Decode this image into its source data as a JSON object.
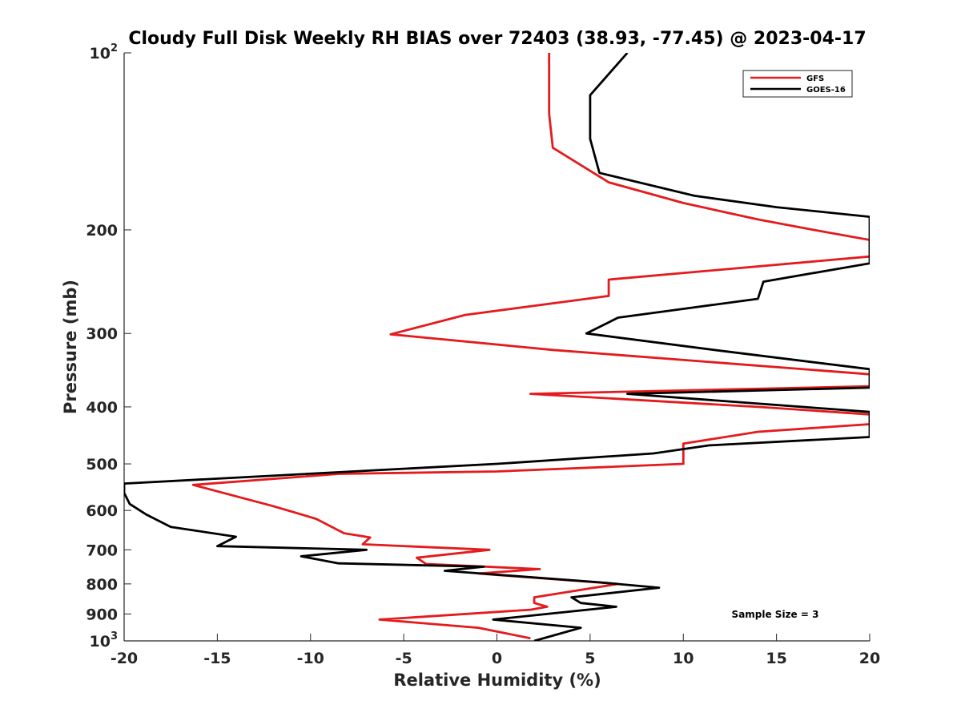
{
  "chart_data": {
    "type": "line",
    "title": "Cloudy Full Disk Weekly RH BIAS over 72403 (38.93, -77.45) @ 2023-04-17",
    "xlabel": "Relative Humidity (%)",
    "ylabel": "Pressure (mb)",
    "xlim": [
      -20,
      20
    ],
    "ylim": [
      100,
      1000
    ],
    "y_scale": "log",
    "y_reversed": true,
    "grid": false,
    "legend_placement": "top-right",
    "xticks": [
      -20,
      -15,
      -10,
      -5,
      0,
      5,
      10,
      15,
      20
    ],
    "xtick_labels": [
      "-20",
      "-15",
      "-10",
      "-5",
      "0",
      "5",
      "10",
      "15",
      "20"
    ],
    "yticks": [
      100,
      200,
      300,
      400,
      500,
      600,
      700,
      800,
      900,
      1000
    ],
    "ytick_labels": [
      {
        "base": "10",
        "exp": "2"
      },
      {
        "base": "200",
        "exp": ""
      },
      {
        "base": "300",
        "exp": ""
      },
      {
        "base": "400",
        "exp": ""
      },
      {
        "base": "500",
        "exp": ""
      },
      {
        "base": "600",
        "exp": ""
      },
      {
        "base": "700",
        "exp": ""
      },
      {
        "base": "800",
        "exp": ""
      },
      {
        "base": "900",
        "exp": ""
      },
      {
        "base": "10",
        "exp": "3"
      }
    ],
    "annotation": "Sample Size = 3",
    "series": [
      {
        "name": "GFS",
        "color": "#e41a1c",
        "x": [
          2.8,
          2.8,
          3.0,
          6.0,
          10.0,
          14.0,
          17.0,
          20.5,
          20.5,
          20.5,
          6.0,
          6.0,
          -1.7,
          -5.7,
          3.0,
          20.5,
          20.5,
          20.5,
          1.8,
          14.0,
          20.5,
          20.5,
          20.5,
          14.0,
          10.0,
          10.0,
          0.0,
          -8.5,
          -16.3,
          -12.0,
          -9.7,
          -8.2,
          -6.8,
          -7.2,
          -0.4,
          -4.3,
          -3.8,
          2.3,
          -1.0,
          6.5,
          2.0,
          2.0,
          2.7,
          1.8,
          -6.3,
          -1.0,
          1.8
        ],
        "y": [
          100,
          127,
          145,
          166,
          180,
          192,
          200,
          208,
          220,
          222,
          243,
          259,
          279,
          301,
          320,
          352,
          368,
          369,
          380,
          400,
          412,
          424,
          428,
          441,
          462,
          500,
          515,
          520,
          543,
          590,
          620,
          656,
          667,
          685,
          700,
          722,
          740,
          755,
          768,
          800,
          843,
          862,
          875,
          885,
          920,
          950,
          990
        ]
      },
      {
        "name": "GOES-16",
        "color": "#000000",
        "x": [
          7.0,
          5.0,
          5.0,
          5.5,
          10.6,
          15.0,
          20.5,
          20.5,
          20.5,
          14.3,
          14.0,
          6.5,
          4.8,
          12.0,
          20.5,
          20.5,
          20.5,
          7.0,
          20.5,
          20.5,
          20.5,
          11.4,
          8.4,
          0.0,
          -20.0,
          -20.0,
          -19.7,
          -18.8,
          -17.5,
          -14.0,
          -15.0,
          -7.0,
          -10.5,
          -8.5,
          -0.7,
          -2.8,
          5.5,
          8.7,
          4.0,
          4.5,
          6.4,
          -0.2,
          4.5,
          2.0
        ],
        "y": [
          100,
          118,
          140,
          160,
          175,
          183,
          190,
          200,
          228,
          245,
          262,
          282,
          300,
          321,
          345,
          368,
          371,
          380,
          408,
          440,
          450,
          465,
          480,
          500,
          540,
          560,
          585,
          610,
          640,
          665,
          690,
          700,
          718,
          738,
          748,
          760,
          795,
          812,
          843,
          862,
          875,
          920,
          950,
          1000
        ]
      }
    ]
  }
}
